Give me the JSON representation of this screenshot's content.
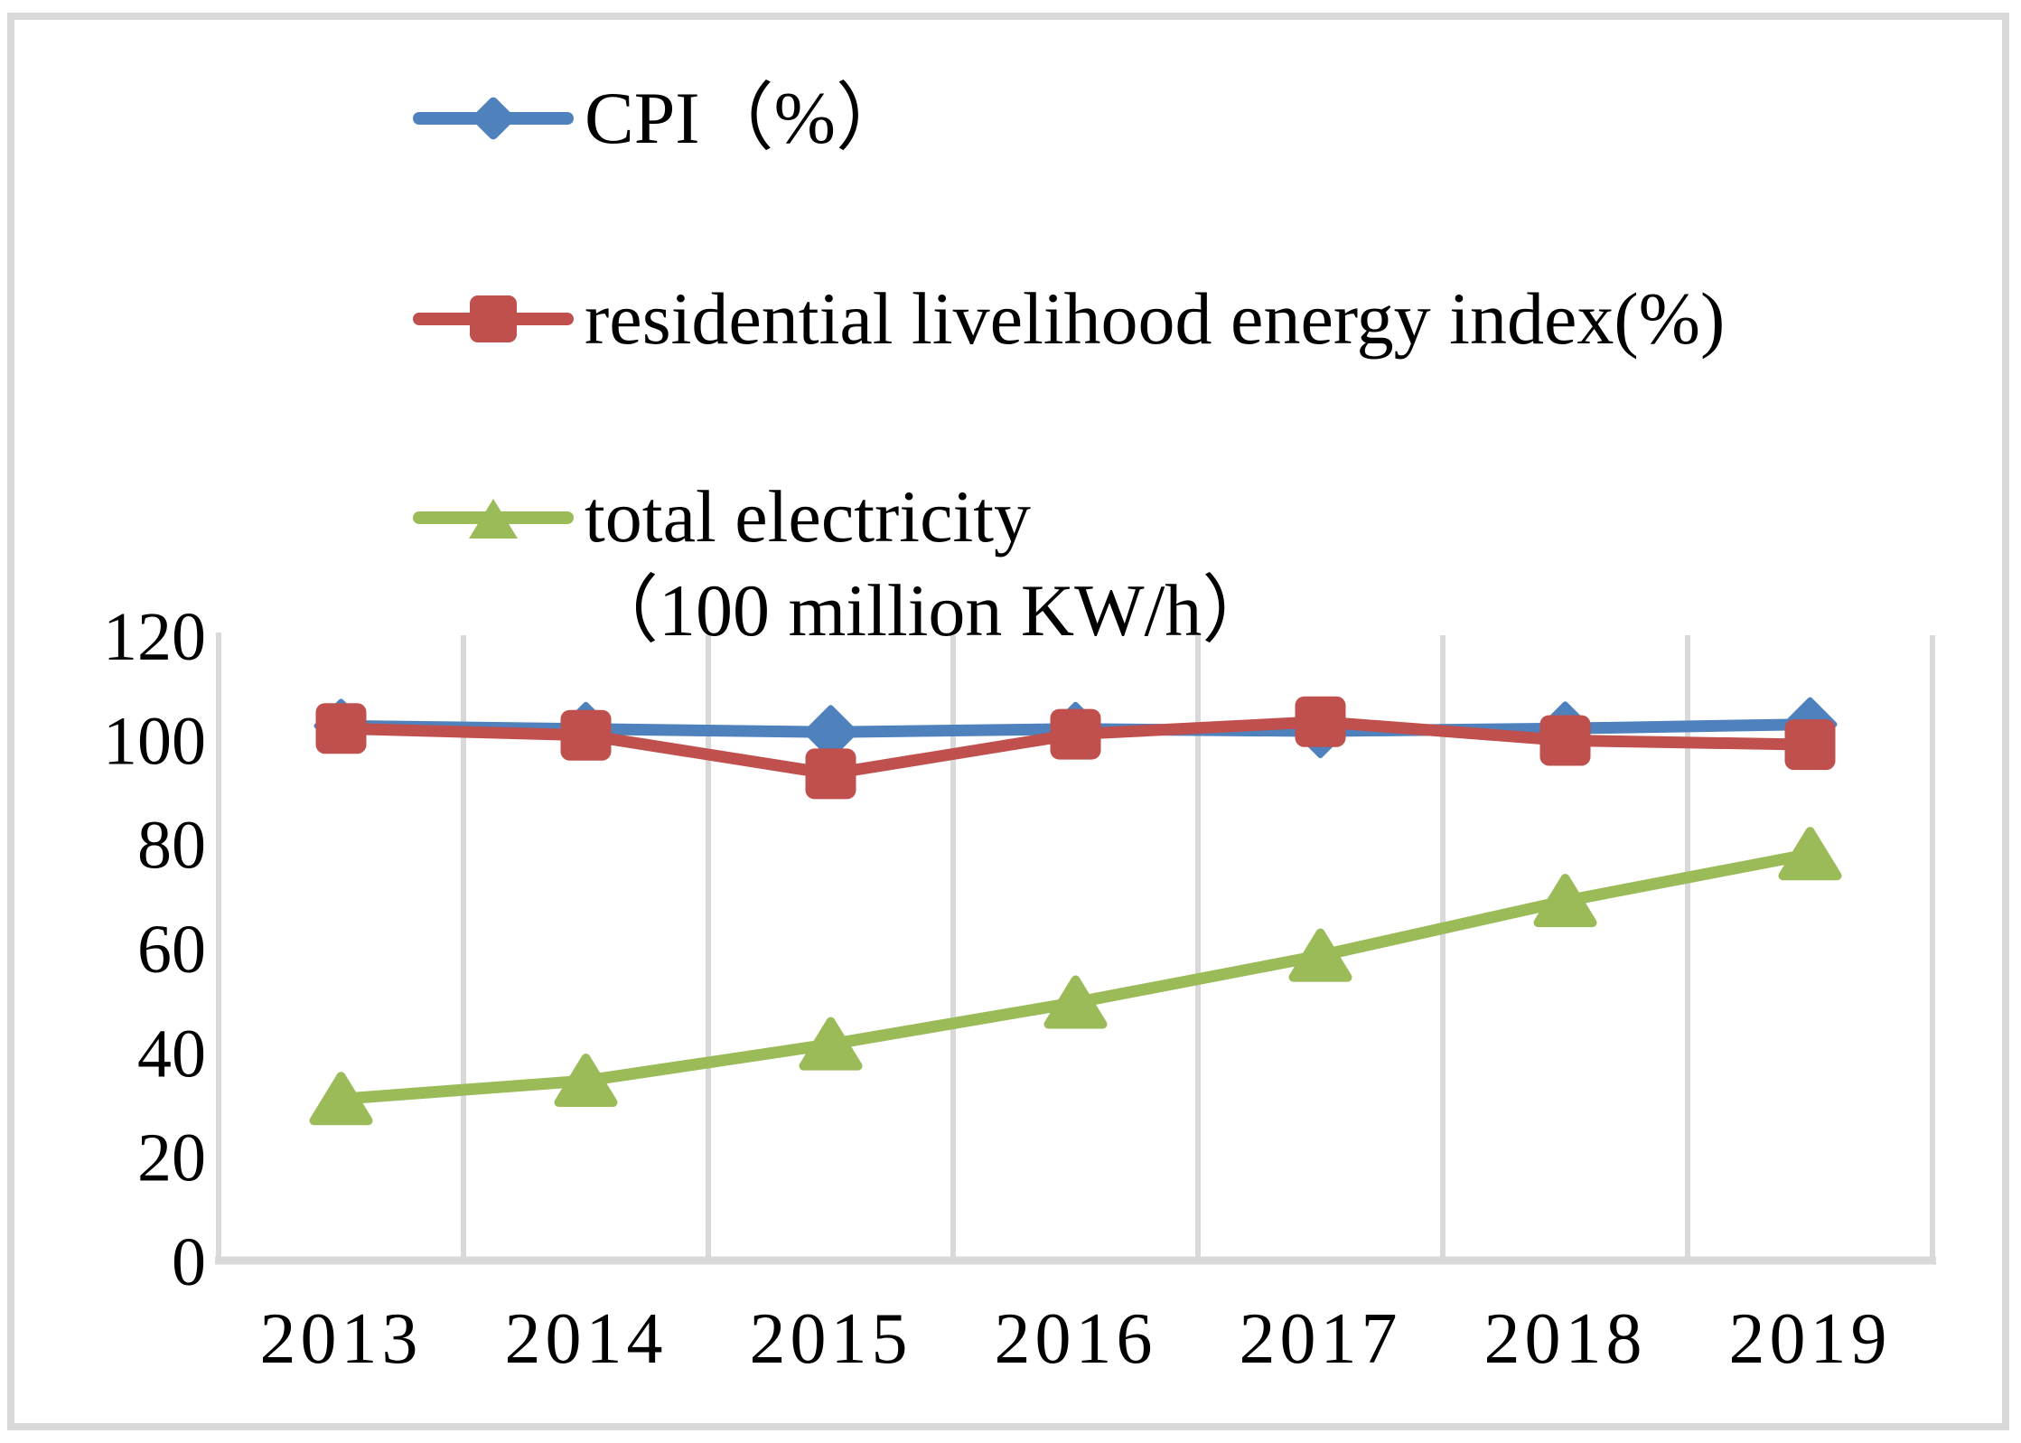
{
  "frame": {
    "border_color": "#d9d9d9",
    "background": "#ffffff"
  },
  "legend": {
    "position": "top-left",
    "items": [
      {
        "label": "CPI（%）",
        "marker": "diamond"
      },
      {
        "label": "residential livelihood energy index(%)",
        "marker": "square"
      },
      {
        "label": "total electricity",
        "sublabel": "（100 million KW/h）",
        "marker": "triangle"
      }
    ]
  },
  "chart_data": {
    "type": "line",
    "categories": [
      "2013",
      "2014",
      "2015",
      "2016",
      "2017",
      "2018",
      "2019"
    ],
    "series": [
      {
        "name": "CPI（%）",
        "marker": "diamond",
        "color": "#4f81bd",
        "values": [
          102.6,
          102.0,
          101.4,
          102.0,
          101.6,
          102.1,
          102.9
        ]
      },
      {
        "name": "residential livelihood energy index(%)",
        "marker": "square",
        "color": "#c0504d",
        "values": [
          102.1,
          100.8,
          93.4,
          101.0,
          103.4,
          99.8,
          99.0
        ]
      },
      {
        "name": "total electricity（100 million KW/h）",
        "marker": "triangle",
        "color": "#9bbb59",
        "values": [
          31.0,
          34.5,
          41.5,
          49.5,
          58.5,
          69.0,
          78.0
        ]
      }
    ],
    "xlabel": "",
    "ylabel": "",
    "ylim": [
      0,
      120
    ],
    "yticks": [
      0,
      20,
      40,
      60,
      80,
      100,
      120
    ],
    "grid": {
      "vertical": true,
      "horizontal": false,
      "color": "#d9d9d9"
    },
    "axis_color": "#d9d9d9",
    "tick_label_color": "#000000",
    "legend_position": "top-left"
  }
}
